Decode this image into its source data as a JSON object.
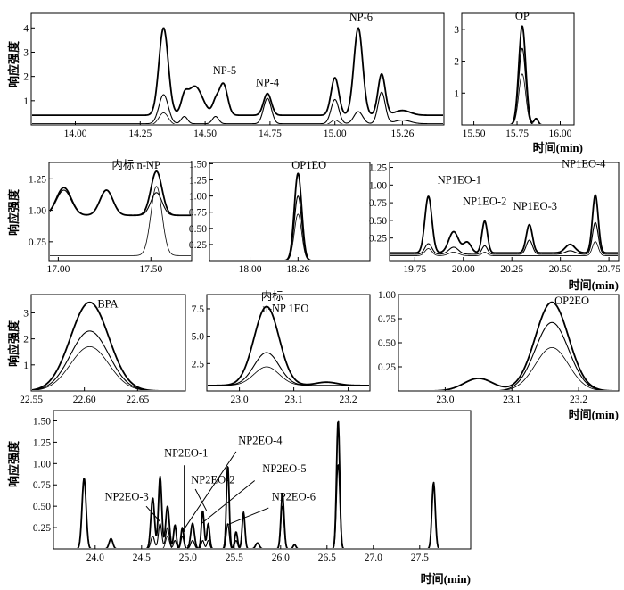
{
  "figure": {
    "ylabel": "响应强度",
    "xlabel": "时间(min)"
  },
  "chart_data": [
    {
      "type": "line",
      "id": "p1",
      "xlim": [
        13.83,
        15.42
      ],
      "ylim": [
        0,
        4.6
      ],
      "xticks": [
        14.0,
        14.25,
        14.5,
        14.75,
        15.0,
        15.26
      ],
      "xtick_labels": [
        "14.00",
        "14.25",
        "14.50",
        "14.75",
        "15.00",
        "15.26"
      ],
      "yticks": [
        1,
        2,
        3,
        4
      ],
      "ytick_labels": [
        "1",
        "2",
        "3",
        "4"
      ],
      "baselines": [
        0.4,
        0.05,
        0.0
      ],
      "peaks": [
        {
          "x": 14.34,
          "h": [
            3.6,
            1.2,
            0.5
          ],
          "w": 0.018
        },
        {
          "x": 14.42,
          "h": [
            0.5,
            0.3,
            0.0
          ],
          "w": 0.012
        },
        {
          "x": 14.46,
          "h": [
            1.2,
            0.0,
            0.0
          ],
          "w": 0.03
        },
        {
          "x": 14.54,
          "h": [
            0.5,
            0.3,
            0.0
          ],
          "w": 0.012
        },
        {
          "x": 14.57,
          "h": [
            1.3,
            0.0,
            0.0
          ],
          "w": 0.016
        },
        {
          "x": 14.74,
          "h": [
            0.9,
            1.05,
            0.0
          ],
          "w": 0.015
        },
        {
          "x": 15.0,
          "h": [
            1.55,
            1.0,
            0.2
          ],
          "w": 0.015
        },
        {
          "x": 15.09,
          "h": [
            3.6,
            0.5,
            0.0
          ],
          "w": 0.017
        },
        {
          "x": 15.18,
          "h": [
            1.7,
            1.3,
            0.0
          ],
          "w": 0.014
        },
        {
          "x": 15.26,
          "h": [
            0.2,
            0.15,
            0.0
          ],
          "w": 0.03
        }
      ],
      "labels": [
        {
          "text": "NP-5",
          "x": 14.575,
          "y": 2.1
        },
        {
          "text": "NP-4",
          "x": 14.74,
          "y": 1.6
        },
        {
          "text": "NP-6",
          "x": 15.1,
          "y": 4.3
        }
      ]
    },
    {
      "type": "line",
      "id": "p2",
      "xlim": [
        15.43,
        16.08
      ],
      "ylim": [
        0,
        3.5
      ],
      "xticks": [
        15.5,
        15.75,
        16.0
      ],
      "xtick_labels": [
        "15.50",
        "15.75",
        "16.00"
      ],
      "yticks": [
        1,
        2,
        3
      ],
      "ytick_labels": [
        "1",
        "2",
        "3"
      ],
      "baselines": [
        0.0,
        0.0,
        0.0
      ],
      "peaks": [
        {
          "x": 15.78,
          "h": [
            3.1,
            2.4,
            1.6
          ],
          "w": 0.02
        },
        {
          "x": 15.86,
          "h": [
            0.2,
            0.0,
            0.0
          ],
          "w": 0.012
        }
      ],
      "labels": [
        {
          "text": "OP",
          "x": 15.78,
          "y": 3.3
        }
      ],
      "xaxis_label": true
    },
    {
      "type": "line",
      "id": "p3",
      "xlim": [
        16.95,
        17.72
      ],
      "ylim": [
        0.6,
        1.38
      ],
      "xticks": [
        17.0,
        17.5
      ],
      "xtick_labels": [
        "17.00",
        "17.50"
      ],
      "yticks": [
        0.75,
        1.0,
        1.25
      ],
      "ytick_labels": [
        "0.75",
        "1.00",
        "1.25"
      ],
      "baselines": [
        0.96,
        0.96,
        0.64
      ],
      "peaks": [
        {
          "x": 17.03,
          "h": [
            0.22,
            0.2,
            0.0
          ],
          "w": 0.04
        },
        {
          "x": 17.26,
          "h": [
            0.2,
            0.2,
            0.0
          ],
          "w": 0.035
        },
        {
          "x": 17.53,
          "h": [
            0.35,
            0.18,
            0.55
          ],
          "w": 0.03
        }
      ],
      "labels": [
        {
          "text": "内标 n-NP",
          "x": 17.42,
          "y": 1.33
        }
      ]
    },
    {
      "type": "line",
      "id": "p4",
      "xlim": [
        17.78,
        18.65
      ],
      "ylim": [
        0,
        1.52
      ],
      "xticks": [
        18.0,
        18.26
      ],
      "xtick_labels": [
        "18.00",
        "18.26"
      ],
      "yticks": [
        0.25,
        0.5,
        0.75,
        1.0,
        1.25,
        1.5
      ],
      "ytick_labels": [
        "0.25",
        "0.50",
        "0.75",
        "1.00",
        "1.25",
        "1.50"
      ],
      "baselines": [
        0.0,
        0.0,
        0.0
      ],
      "peaks": [
        {
          "x": 18.26,
          "h": [
            1.35,
            1.0,
            0.72
          ],
          "w": 0.02
        }
      ],
      "labels": [
        {
          "text": "OP1EO",
          "x": 18.32,
          "y": 1.42
        }
      ]
    },
    {
      "type": "line",
      "id": "p5",
      "xlim": [
        19.62,
        20.8
      ],
      "ylim": [
        -0.07,
        1.32
      ],
      "xticks": [
        19.75,
        20.0,
        20.25,
        20.5,
        20.75
      ],
      "xtick_labels": [
        "19.75",
        "20.00",
        "20.25",
        "20.50",
        "20.75"
      ],
      "yticks": [
        0.25,
        0.5,
        0.75,
        1.0,
        1.25
      ],
      "ytick_labels": [
        "0.25",
        "0.50",
        "0.75",
        "1.00",
        "1.25"
      ],
      "baselines": [
        0.04,
        0.02,
        0.0
      ],
      "peaks": [
        {
          "x": 19.82,
          "h": [
            0.8,
            0.15,
            0.1
          ],
          "w": 0.018
        },
        {
          "x": 19.95,
          "h": [
            0.3,
            0.1,
            0.05
          ],
          "w": 0.025
        },
        {
          "x": 20.02,
          "h": [
            0.15,
            0.0,
            0.0
          ],
          "w": 0.02
        },
        {
          "x": 20.11,
          "h": [
            0.45,
            0.12,
            0.05
          ],
          "w": 0.014
        },
        {
          "x": 20.34,
          "h": [
            0.4,
            0.2,
            0.0
          ],
          "w": 0.016
        },
        {
          "x": 20.55,
          "h": [
            0.12,
            0.05,
            0.0
          ],
          "w": 0.025
        },
        {
          "x": 20.68,
          "h": [
            0.82,
            0.45,
            0.2
          ],
          "w": 0.015
        }
      ],
      "labels": [
        {
          "text": "NP1EO-1",
          "x": 19.98,
          "y": 1.02
        },
        {
          "text": "NP1EO-2",
          "x": 20.11,
          "y": 0.72
        },
        {
          "text": "NP1EO-3",
          "x": 20.37,
          "y": 0.65
        },
        {
          "text": "NP1EO-4",
          "x": 20.62,
          "y": 1.25
        }
      ],
      "xaxis_label": true
    },
    {
      "type": "line",
      "id": "p6",
      "xlim": [
        22.55,
        22.695
      ],
      "ylim": [
        0,
        3.7
      ],
      "xticks": [
        22.55,
        22.6,
        22.65
      ],
      "xtick_labels": [
        "22.55",
        "22.60",
        "22.65"
      ],
      "yticks": [
        1,
        2,
        3
      ],
      "ytick_labels": [
        "1",
        "2",
        "3"
      ],
      "baselines": [
        0.0,
        0.0,
        0.0
      ],
      "peaks": [
        {
          "x": 22.605,
          "h": [
            3.4,
            2.3,
            1.7
          ],
          "w": 0.018
        }
      ],
      "labels": [
        {
          "text": "BPA",
          "x": 22.622,
          "y": 3.2
        }
      ]
    },
    {
      "type": "line",
      "id": "p7",
      "xlim": [
        22.94,
        23.24
      ],
      "ylim": [
        0,
        8.8
      ],
      "xticks": [
        23.0,
        23.1,
        23.2
      ],
      "xtick_labels": [
        "23.0",
        "23.1",
        "23.2"
      ],
      "yticks": [
        2.5,
        5.0,
        7.5
      ],
      "ytick_labels": [
        "2.5",
        "5.0",
        "7.5"
      ],
      "baselines": [
        0.5,
        0.5,
        0.5
      ],
      "peaks": [
        {
          "x": 23.05,
          "h": [
            7.2,
            3.0,
            1.7
          ],
          "w": 0.023
        },
        {
          "x": 23.16,
          "h": [
            0.3,
            0.0,
            0.0
          ],
          "w": 0.02
        }
      ],
      "labels": [
        {
          "text": "内标",
          "x": 23.06,
          "y": 8.3
        },
        {
          "text": "n-NP 1EO",
          "x": 23.085,
          "y": 7.2
        }
      ]
    },
    {
      "type": "line",
      "id": "p8",
      "xlim": [
        22.93,
        23.26
      ],
      "ylim": [
        0,
        1.0
      ],
      "xticks": [
        23.0,
        23.1,
        23.2
      ],
      "xtick_labels": [
        "23.0",
        "23.1",
        "23.2"
      ],
      "yticks": [
        0.25,
        0.5,
        0.75,
        1.0
      ],
      "ytick_labels": [
        "0.25",
        "0.50",
        "0.75",
        "1.00"
      ],
      "baselines": [
        0.0,
        0.0,
        0.0
      ],
      "peaks": [
        {
          "x": 23.16,
          "h": [
            0.92,
            0.71,
            0.45
          ],
          "w": 0.025
        },
        {
          "x": 23.05,
          "h": [
            0.13,
            0.0,
            0.0
          ],
          "w": 0.022
        }
      ],
      "labels": [
        {
          "text": "OP2EO",
          "x": 23.19,
          "y": 0.9
        }
      ],
      "xaxis_label": true
    },
    {
      "type": "line",
      "id": "p9",
      "xlim": [
        23.55,
        28.05
      ],
      "ylim": [
        0,
        1.62
      ],
      "xticks": [
        24.0,
        24.5,
        25.0,
        25.5,
        26.0,
        26.5,
        27.0,
        27.5
      ],
      "xtick_labels": [
        "24.0",
        "24.5",
        "25.0",
        "25.5",
        "26.0",
        "26.5",
        "27.0",
        "27.5"
      ],
      "yticks": [
        0.25,
        0.5,
        0.75,
        1.0,
        1.25,
        1.5
      ],
      "ytick_labels": [
        "0.25",
        "0.50",
        "0.75",
        "1.00",
        "1.25",
        "1.50"
      ],
      "baselines": [
        0.0,
        0.0,
        0.0
      ],
      "peaks": [
        {
          "x": 23.88,
          "h": [
            0.83,
            0.0,
            0.0
          ],
          "w": 0.022
        },
        {
          "x": 24.17,
          "h": [
            0.12,
            0.0,
            0.0
          ],
          "w": 0.02
        },
        {
          "x": 24.62,
          "h": [
            0.6,
            0.15,
            0.0
          ],
          "w": 0.02
        },
        {
          "x": 24.7,
          "h": [
            0.85,
            0.3,
            0.0
          ],
          "w": 0.018
        },
        {
          "x": 24.78,
          "h": [
            0.5,
            0.25,
            0.15
          ],
          "w": 0.02
        },
        {
          "x": 24.86,
          "h": [
            0.28,
            0.1,
            0.0
          ],
          "w": 0.015
        },
        {
          "x": 24.94,
          "h": [
            0.25,
            0.15,
            0.0
          ],
          "w": 0.015
        },
        {
          "x": 25.05,
          "h": [
            0.3,
            0.1,
            0.0
          ],
          "w": 0.02
        },
        {
          "x": 25.16,
          "h": [
            0.45,
            0.1,
            0.0
          ],
          "w": 0.015
        },
        {
          "x": 25.22,
          "h": [
            0.3,
            0.1,
            0.0
          ],
          "w": 0.015
        },
        {
          "x": 25.43,
          "h": [
            0.98,
            0.3,
            0.0
          ],
          "w": 0.015
        },
        {
          "x": 25.52,
          "h": [
            0.2,
            0.1,
            0.0
          ],
          "w": 0.015
        },
        {
          "x": 25.6,
          "h": [
            0.43,
            0.0,
            0.0
          ],
          "w": 0.015
        },
        {
          "x": 25.75,
          "h": [
            0.07,
            0.0,
            0.0
          ],
          "w": 0.02
        },
        {
          "x": 26.02,
          "h": [
            0.65,
            0.5,
            0.0
          ],
          "w": 0.017
        },
        {
          "x": 26.15,
          "h": [
            0.05,
            0.0,
            0.0
          ],
          "w": 0.015
        },
        {
          "x": 26.62,
          "h": [
            1.51,
            1.0,
            0.0
          ],
          "w": 0.017
        },
        {
          "x": 27.65,
          "h": [
            0.78,
            0.0,
            0.0
          ],
          "w": 0.018
        }
      ],
      "labels": [
        {
          "text": "NP2EO-1",
          "x": 24.98,
          "y": 1.08
        },
        {
          "text": "NP2EO-3",
          "x": 24.34,
          "y": 0.57
        },
        {
          "text": "NP2EO-2",
          "x": 25.27,
          "y": 0.77
        },
        {
          "text": "NP2EO-4",
          "x": 25.78,
          "y": 1.23
        },
        {
          "text": "NP2EO-5",
          "x": 26.04,
          "y": 0.9
        },
        {
          "text": "NP2EO-6",
          "x": 26.14,
          "y": 0.57
        }
      ],
      "leaders": [
        [
          24.96,
          0.98,
          24.96,
          0.2
        ],
        [
          24.55,
          0.5,
          24.7,
          0.32
        ],
        [
          25.08,
          0.7,
          25.2,
          0.45
        ],
        [
          25.52,
          1.14,
          24.97,
          0.25
        ],
        [
          25.72,
          0.8,
          25.15,
          0.3
        ],
        [
          25.87,
          0.48,
          25.42,
          0.28
        ]
      ],
      "xaxis_label": true
    }
  ]
}
